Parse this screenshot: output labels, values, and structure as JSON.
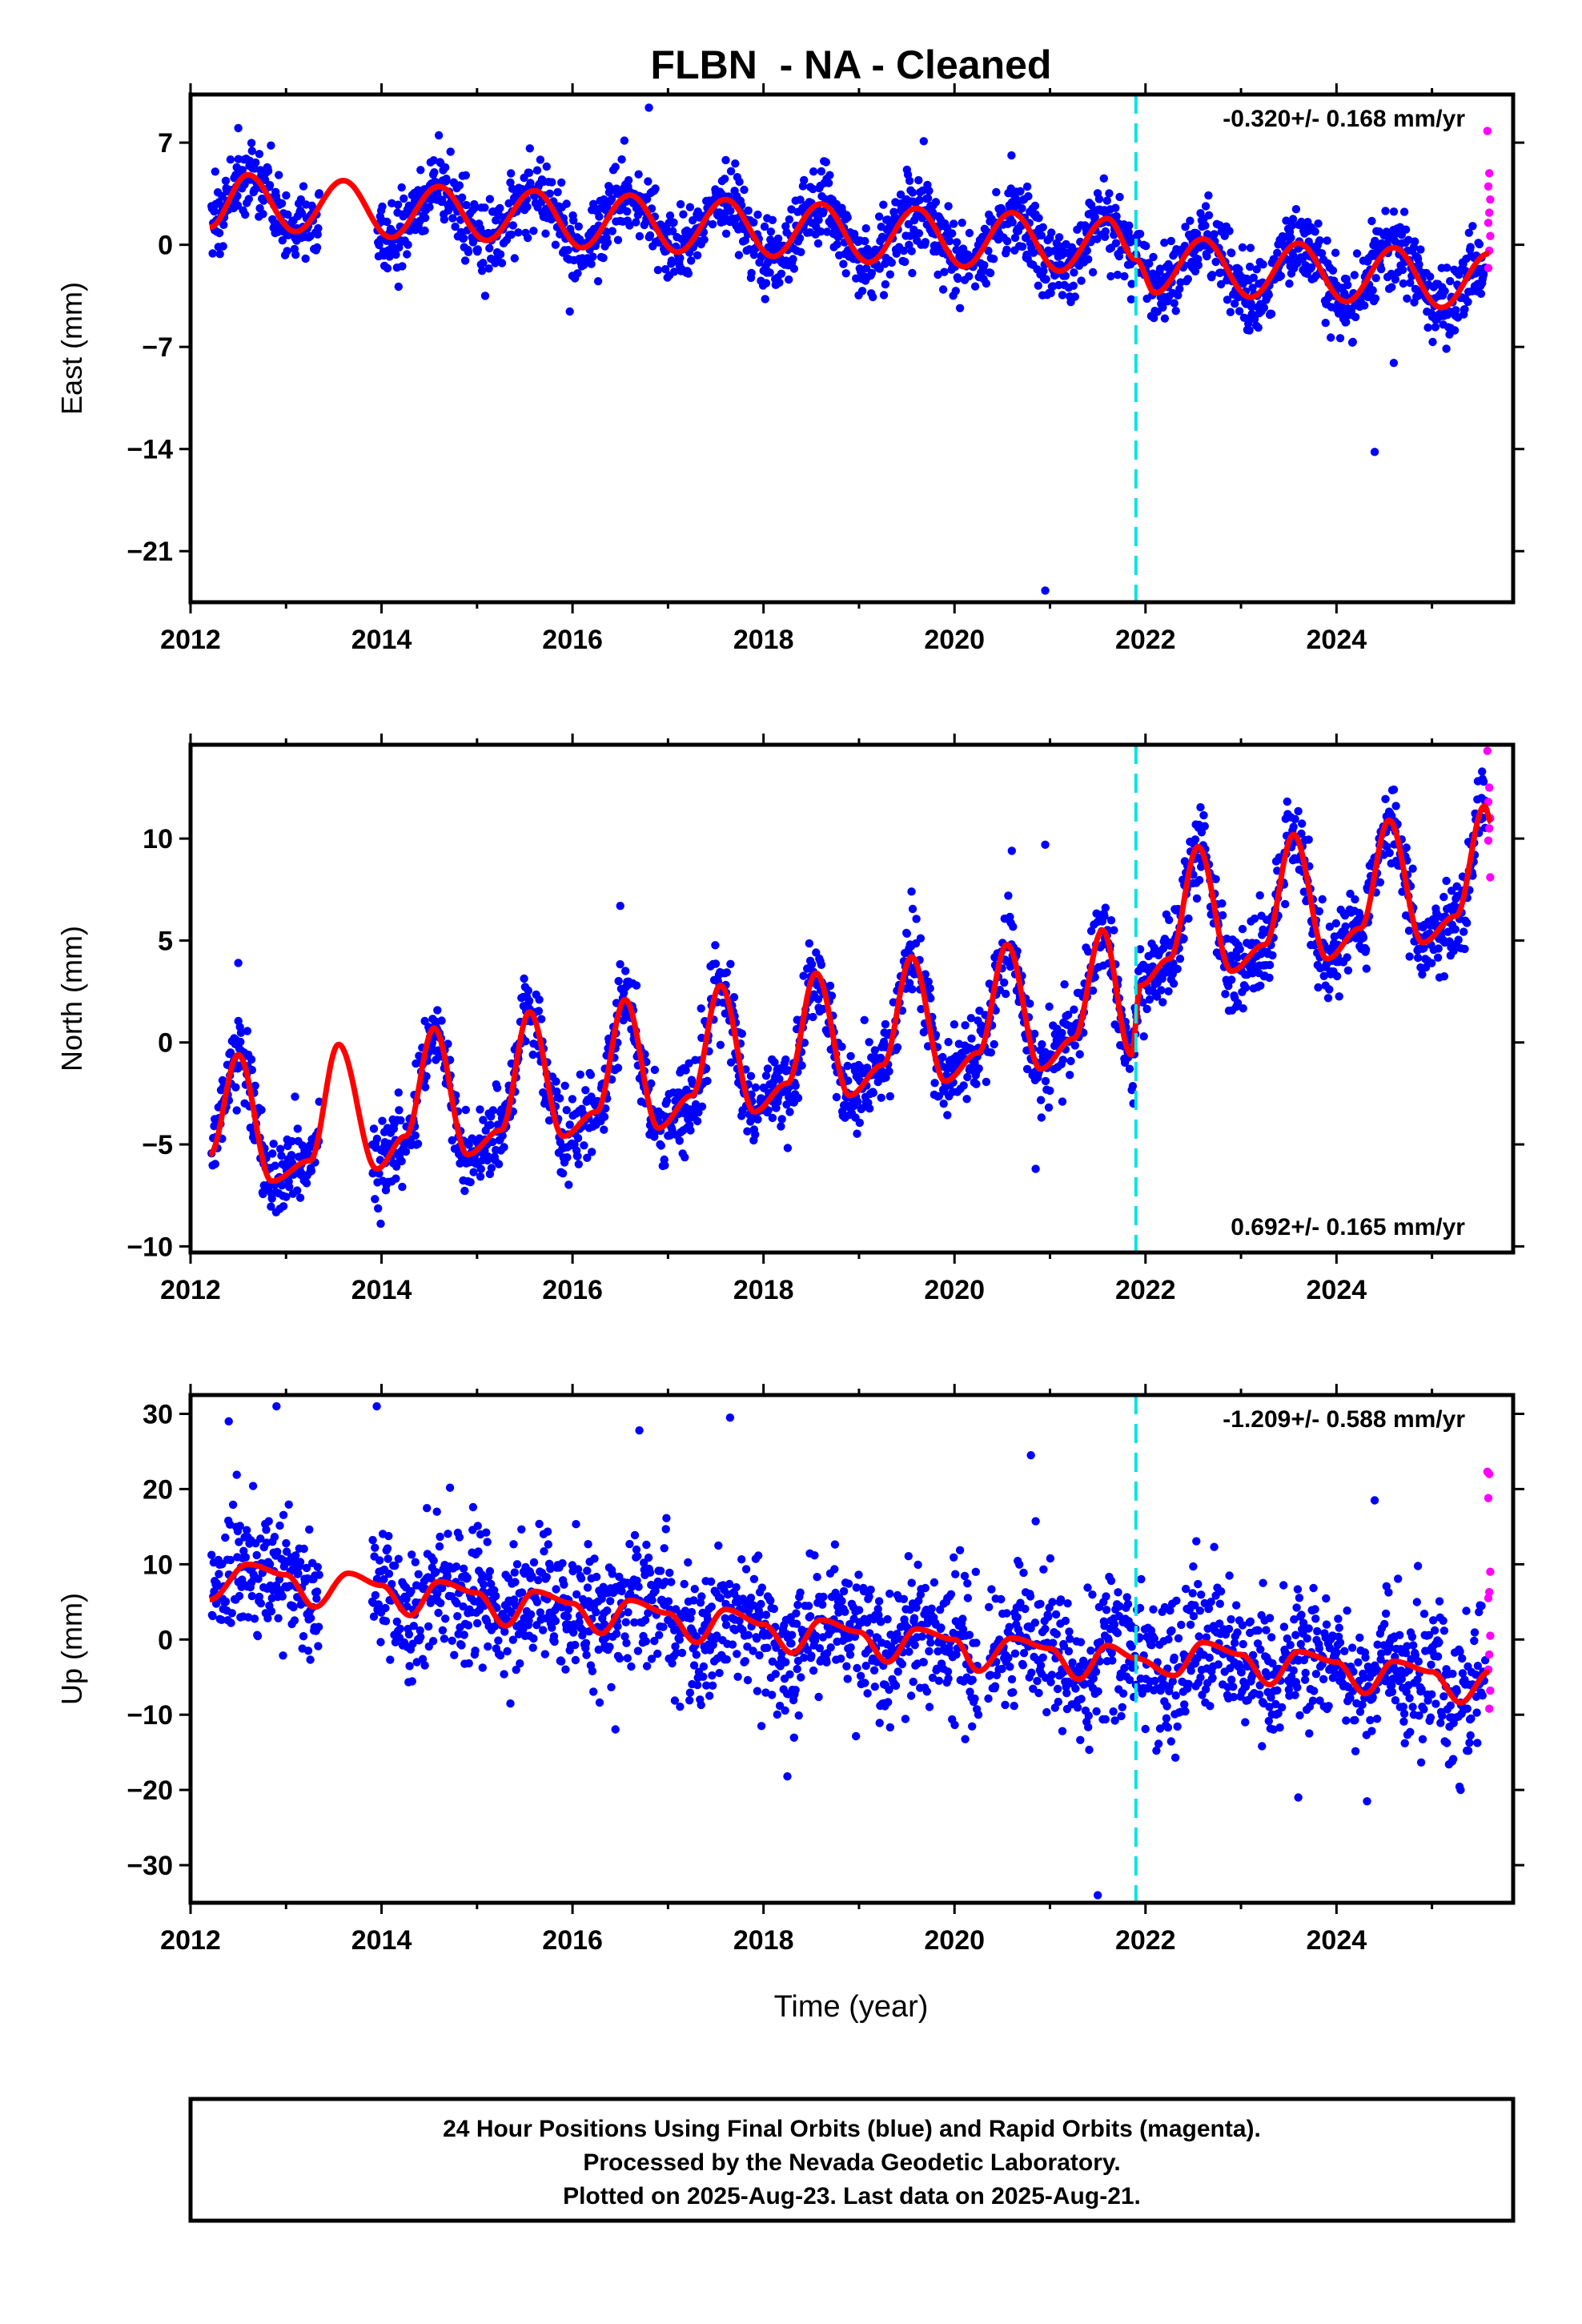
{
  "chart_data": {
    "type": "scatter",
    "title": "FLBN  - NA - Cleaned",
    "xlabel": "Time (year)",
    "xlim": [
      2012,
      2025.85
    ],
    "x_ticks": [
      "2012",
      "2014",
      "2016",
      "2018",
      "2020",
      "2022",
      "2024"
    ],
    "equipment_change": 2021.9,
    "series_colors": {
      "final_orbits": "#0000ff",
      "rapid_orbits": "#ff00ff",
      "model_fit": "#ff0000",
      "offset_line": "#00e5e5"
    },
    "panels": [
      {
        "ylabel": "East (mm)",
        "ylim": [
          -24.5,
          10.3
        ],
        "yticks": [
          "7",
          "0",
          "−7",
          "−14",
          "−21"
        ],
        "rate": "-0.320+/- 0.168 mm/yr",
        "rate_position": "top-right",
        "seasonal_amplitude": 2.2,
        "scatter": 1.3,
        "model_fit": [
          {
            "x": 2012.2,
            "y": 1.2
          },
          {
            "x": 2012.6,
            "y": 4.8
          },
          {
            "x": 2013.1,
            "y": 0.9
          },
          {
            "x": 2013.6,
            "y": 4.4
          },
          {
            "x": 2014.1,
            "y": 0.5
          },
          {
            "x": 2014.6,
            "y": 4.0
          },
          {
            "x": 2015.1,
            "y": 0.3
          },
          {
            "x": 2015.6,
            "y": 3.7
          },
          {
            "x": 2016.1,
            "y": -0.2
          },
          {
            "x": 2016.6,
            "y": 3.4
          },
          {
            "x": 2017.1,
            "y": -0.5
          },
          {
            "x": 2017.6,
            "y": 3.1
          },
          {
            "x": 2018.1,
            "y": -0.8
          },
          {
            "x": 2018.6,
            "y": 2.8
          },
          {
            "x": 2019.1,
            "y": -1.2
          },
          {
            "x": 2019.6,
            "y": 2.5
          },
          {
            "x": 2020.1,
            "y": -1.5
          },
          {
            "x": 2020.6,
            "y": 2.2
          },
          {
            "x": 2021.1,
            "y": -1.8
          },
          {
            "x": 2021.6,
            "y": 1.8
          },
          {
            "x": 2021.9,
            "y": -1.0
          },
          {
            "x": 2022.1,
            "y": -3.3
          },
          {
            "x": 2022.6,
            "y": 0.4
          },
          {
            "x": 2023.1,
            "y": -3.6
          },
          {
            "x": 2023.6,
            "y": 0.1
          },
          {
            "x": 2024.1,
            "y": -3.9
          },
          {
            "x": 2024.6,
            "y": -0.2
          },
          {
            "x": 2025.1,
            "y": -4.3
          },
          {
            "x": 2025.6,
            "y": -0.6
          }
        ],
        "gaps": [
          [
            2013.35,
            2013.95
          ]
        ],
        "outliers": [
          {
            "x": 2020.95,
            "y": -23.7
          },
          {
            "x": 2024.4,
            "y": -14.2
          },
          {
            "x": 2016.8,
            "y": 9.4
          },
          {
            "x": 2024.6,
            "y": -8.1
          },
          {
            "x": 2012.5,
            "y": 8.0
          },
          {
            "x": 2014.6,
            "y": 7.5
          }
        ],
        "rapid_points": [
          {
            "x": 2025.58,
            "y": 7.8
          },
          {
            "x": 2025.6,
            "y": 4.9
          },
          {
            "x": 2025.59,
            "y": 4.0
          },
          {
            "x": 2025.61,
            "y": 3.1
          },
          {
            "x": 2025.6,
            "y": 2.2
          },
          {
            "x": 2025.59,
            "y": 1.5
          },
          {
            "x": 2025.61,
            "y": 0.6
          },
          {
            "x": 2025.6,
            "y": -0.4
          },
          {
            "x": 2025.59,
            "y": -1.6
          }
        ]
      },
      {
        "ylabel": "North (mm)",
        "ylim": [
          -10.3,
          14.6
        ],
        "yticks": [
          "10",
          "5",
          "0",
          "−5",
          "−10"
        ],
        "rate": "0.692+/- 0.165 mm/yr",
        "rate_position": "bottom-right",
        "seasonal_amplitude": 3.2,
        "scatter": 1.0,
        "model_fit": [
          {
            "x": 2012.2,
            "y": -5.5
          },
          {
            "x": 2012.5,
            "y": -0.6
          },
          {
            "x": 2012.85,
            "y": -6.8
          },
          {
            "x": 2013.25,
            "y": -5.8
          },
          {
            "x": 2013.55,
            "y": -0.1
          },
          {
            "x": 2013.95,
            "y": -6.2
          },
          {
            "x": 2014.25,
            "y": -4.6
          },
          {
            "x": 2014.55,
            "y": 0.7
          },
          {
            "x": 2014.9,
            "y": -5.5
          },
          {
            "x": 2015.25,
            "y": -4.3
          },
          {
            "x": 2015.55,
            "y": 1.5
          },
          {
            "x": 2015.9,
            "y": -4.6
          },
          {
            "x": 2016.25,
            "y": -3.4
          },
          {
            "x": 2016.55,
            "y": 2.1
          },
          {
            "x": 2016.9,
            "y": -4.2
          },
          {
            "x": 2017.25,
            "y": -2.6
          },
          {
            "x": 2017.55,
            "y": 2.8
          },
          {
            "x": 2017.9,
            "y": -3.4
          },
          {
            "x": 2018.25,
            "y": -2.0
          },
          {
            "x": 2018.55,
            "y": 3.4
          },
          {
            "x": 2018.9,
            "y": -2.6
          },
          {
            "x": 2019.25,
            "y": -1.1
          },
          {
            "x": 2019.55,
            "y": 4.2
          },
          {
            "x": 2019.9,
            "y": -1.9
          },
          {
            "x": 2020.25,
            "y": -0.5
          },
          {
            "x": 2020.55,
            "y": 4.8
          },
          {
            "x": 2020.9,
            "y": -1.3
          },
          {
            "x": 2021.25,
            "y": 0.2
          },
          {
            "x": 2021.55,
            "y": 5.5
          },
          {
            "x": 2021.85,
            "y": -0.6
          },
          {
            "x": 2021.95,
            "y": 2.8
          },
          {
            "x": 2022.25,
            "y": 4.1
          },
          {
            "x": 2022.55,
            "y": 9.6
          },
          {
            "x": 2022.9,
            "y": 3.5
          },
          {
            "x": 2023.25,
            "y": 4.8
          },
          {
            "x": 2023.55,
            "y": 10.2
          },
          {
            "x": 2023.9,
            "y": 4.1
          },
          {
            "x": 2024.25,
            "y": 5.6
          },
          {
            "x": 2024.55,
            "y": 10.9
          },
          {
            "x": 2024.9,
            "y": 4.9
          },
          {
            "x": 2025.25,
            "y": 6.2
          },
          {
            "x": 2025.55,
            "y": 11.6
          },
          {
            "x": 2025.62,
            "y": 10.8
          }
        ],
        "gaps": [
          [
            2013.35,
            2013.9
          ]
        ],
        "outliers": [
          {
            "x": 2020.95,
            "y": 9.7
          },
          {
            "x": 2020.6,
            "y": 9.4
          },
          {
            "x": 2016.5,
            "y": 6.7
          },
          {
            "x": 2012.5,
            "y": 3.9
          },
          {
            "x": 2019.55,
            "y": 7.4
          },
          {
            "x": 2020.85,
            "y": -6.2
          }
        ],
        "rapid_points": [
          {
            "x": 2025.58,
            "y": 14.3
          },
          {
            "x": 2025.6,
            "y": 12.5
          },
          {
            "x": 2025.59,
            "y": 11.8
          },
          {
            "x": 2025.61,
            "y": 11.0
          },
          {
            "x": 2025.6,
            "y": 10.5
          },
          {
            "x": 2025.59,
            "y": 9.9
          },
          {
            "x": 2025.61,
            "y": 8.1
          }
        ]
      },
      {
        "ylabel": "Up (mm)",
        "ylim": [
          -35,
          32.5
        ],
        "yticks": [
          "30",
          "20",
          "10",
          "0",
          "−10",
          "−20",
          "−30"
        ],
        "rate": "-1.209+/- 0.588 mm/yr",
        "rate_position": "top-right",
        "seasonal_amplitude": 1.8,
        "scatter": 4.5,
        "model_fit": [
          {
            "x": 2012.2,
            "y": 5.3
          },
          {
            "x": 2012.6,
            "y": 10.0
          },
          {
            "x": 2013.0,
            "y": 8.6
          },
          {
            "x": 2013.3,
            "y": 4.3
          },
          {
            "x": 2013.65,
            "y": 8.8
          },
          {
            "x": 2014.0,
            "y": 7.2
          },
          {
            "x": 2014.3,
            "y": 3.2
          },
          {
            "x": 2014.6,
            "y": 7.7
          },
          {
            "x": 2015.0,
            "y": 6.2
          },
          {
            "x": 2015.3,
            "y": 1.8
          },
          {
            "x": 2015.6,
            "y": 6.4
          },
          {
            "x": 2016.0,
            "y": 4.8
          },
          {
            "x": 2016.3,
            "y": 0.8
          },
          {
            "x": 2016.6,
            "y": 5.2
          },
          {
            "x": 2017.0,
            "y": 3.5
          },
          {
            "x": 2017.3,
            "y": -0.4
          },
          {
            "x": 2017.6,
            "y": 4.0
          },
          {
            "x": 2018.0,
            "y": 2.0
          },
          {
            "x": 2018.3,
            "y": -1.8
          },
          {
            "x": 2018.6,
            "y": 2.6
          },
          {
            "x": 2019.0,
            "y": 1.0
          },
          {
            "x": 2019.3,
            "y": -3.0
          },
          {
            "x": 2019.6,
            "y": 1.4
          },
          {
            "x": 2020.0,
            "y": 0.0
          },
          {
            "x": 2020.25,
            "y": -4.2
          },
          {
            "x": 2020.6,
            "y": 0.2
          },
          {
            "x": 2021.0,
            "y": -1.2
          },
          {
            "x": 2021.3,
            "y": -5.3
          },
          {
            "x": 2021.6,
            "y": -0.8
          },
          {
            "x": 2021.9,
            "y": -2.5
          },
          {
            "x": 2022.3,
            "y": -4.8
          },
          {
            "x": 2022.6,
            "y": -0.4
          },
          {
            "x": 2023.0,
            "y": -2.0
          },
          {
            "x": 2023.3,
            "y": -6.0
          },
          {
            "x": 2023.6,
            "y": -1.6
          },
          {
            "x": 2024.0,
            "y": -3.0
          },
          {
            "x": 2024.3,
            "y": -7.2
          },
          {
            "x": 2024.6,
            "y": -2.9
          },
          {
            "x": 2025.0,
            "y": -4.3
          },
          {
            "x": 2025.3,
            "y": -8.4
          },
          {
            "x": 2025.6,
            "y": -4.3
          }
        ],
        "gaps": [
          [
            2013.35,
            2013.9
          ],
          [
            2020.25,
            2020.35
          ]
        ],
        "outliers": [
          {
            "x": 2021.5,
            "y": -34.0
          },
          {
            "x": 2013.95,
            "y": 31.0
          },
          {
            "x": 2012.9,
            "y": 31.0
          },
          {
            "x": 2017.65,
            "y": 29.5
          },
          {
            "x": 2020.8,
            "y": 24.5
          },
          {
            "x": 2016.7,
            "y": 27.8
          },
          {
            "x": 2023.6,
            "y": -21.0
          },
          {
            "x": 2025.3,
            "y": -20.0
          },
          {
            "x": 2018.25,
            "y": -18.2
          },
          {
            "x": 2024.4,
            "y": 18.5
          },
          {
            "x": 2012.4,
            "y": 29.0
          }
        ],
        "rapid_points": [
          {
            "x": 2025.58,
            "y": 22.3
          },
          {
            "x": 2025.6,
            "y": 22.0
          },
          {
            "x": 2025.59,
            "y": 18.8
          },
          {
            "x": 2025.61,
            "y": 9.0
          },
          {
            "x": 2025.6,
            "y": 6.3
          },
          {
            "x": 2025.59,
            "y": 5.5
          },
          {
            "x": 2025.61,
            "y": 0.5
          },
          {
            "x": 2025.6,
            "y": -2.0
          },
          {
            "x": 2025.59,
            "y": -4.0
          },
          {
            "x": 2025.61,
            "y": -6.8
          },
          {
            "x": 2025.6,
            "y": -9.2
          }
        ]
      }
    ]
  },
  "footer": {
    "line1": "24 Hour Positions Using Final Orbits (blue) and Rapid Orbits (magenta).",
    "line2": "Processed by the Nevada Geodetic Laboratory.",
    "line3": "Plotted on 2025-Aug-23. Last data on 2025-Aug-21."
  }
}
